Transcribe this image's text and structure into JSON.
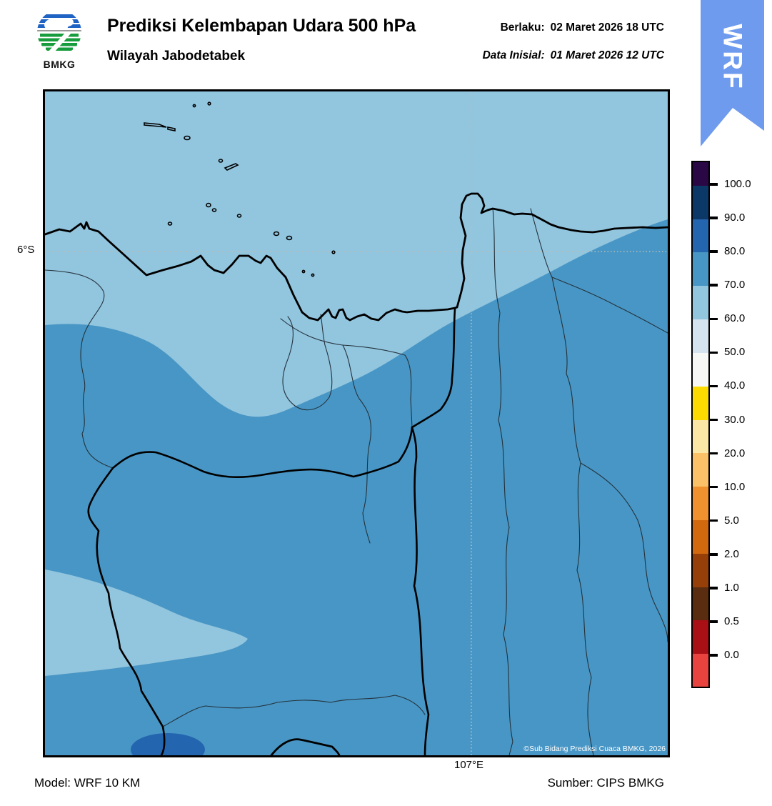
{
  "header": {
    "title": "Prediksi Kelembapan Udara 500 hPa",
    "subtitle": "Wilayah Jabodetabek",
    "valid_label": "Berlaku:",
    "valid_value": "02 Maret 2026 18 UTC",
    "init_label": "Data Inisial:",
    "init_value": "01 Maret 2026 12 UTC",
    "logo_text": "BMKG",
    "ribbon_text": "WRF"
  },
  "map": {
    "lat_label": "6°S",
    "lon_label": "107°E",
    "copyright": "©Sub Bidang Prediksi Cuaca BMKG, 2026"
  },
  "footer": {
    "model": "Model: WRF 10 KM",
    "source": "Sumber: CIPS BMKG"
  },
  "colorbar": {
    "tick_labels": [
      "100.0",
      "90.0",
      "80.0",
      "70.0",
      "60.0",
      "50.0",
      "40.0",
      "30.0",
      "20.0",
      "10.0",
      "5.0",
      "2.0",
      "1.0",
      "0.5",
      "0.0"
    ],
    "segment_colors_top_to_bottom": [
      "#2a0845",
      "#0c3868",
      "#2465b0",
      "#4896c5",
      "#92c5de",
      "#d5e3ee",
      "#f7f7f5",
      "#fcdc00",
      "#fbe7a5",
      "#fac168",
      "#f0912f",
      "#d2690f",
      "#963f08",
      "#5a2c10",
      "#a91016",
      "#e8433e"
    ]
  },
  "colors": {
    "map_base_60_70": "#92c5de",
    "band_70_80": "#4896c5",
    "blob_80_90": "#2465b0",
    "boundary_thick": "#000000",
    "boundary_thin": "#23323c",
    "gridline": "#b9bdb9",
    "ribbon_blue": "#6e9bee",
    "logo_blue": "#1f63c4",
    "logo_green": "#169c3c"
  },
  "chart_data": {
    "type": "heatmap",
    "title": "Prediksi Kelembapan Udara 500 hPa - Wilayah Jabodetabek",
    "legend_ticks": [
      100.0,
      90.0,
      80.0,
      70.0,
      60.0,
      50.0,
      40.0,
      30.0,
      20.0,
      10.0,
      5.0,
      2.0,
      1.0,
      0.5,
      0.0
    ],
    "legend_position": "right",
    "map_classes_visible": [
      "60-70",
      "70-80",
      "80-90"
    ],
    "gridlines": {
      "lat": "6°S",
      "lon": "107°E"
    }
  }
}
